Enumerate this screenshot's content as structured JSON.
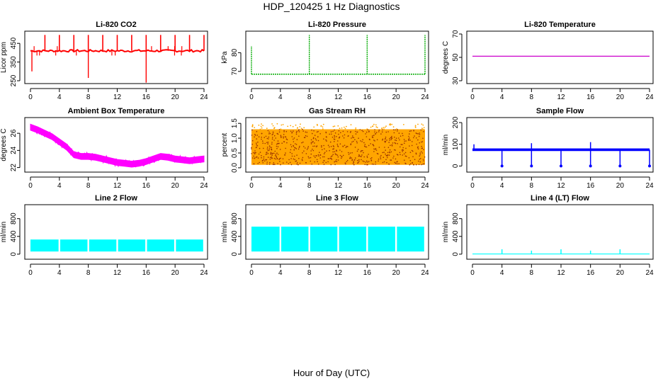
{
  "page": {
    "title": "HDP_120425  1 Hz Diagnostics",
    "xlabel": "Hour of Day (UTC)"
  },
  "chart_data": [
    {
      "type": "line",
      "title": "Li-820 CO2",
      "ylabel": "Licor ppm",
      "color": "#ff0000",
      "style": "co2",
      "xlim": [
        0,
        24
      ],
      "ylim": [
        250,
        500
      ],
      "xticks": [
        0,
        4,
        8,
        12,
        16,
        20,
        24
      ],
      "yticks": [
        250,
        350,
        450
      ],
      "baseline": 410,
      "spikes_up": [
        2,
        4,
        6,
        8,
        10,
        12,
        14,
        16,
        18,
        20,
        22,
        24
      ],
      "spikes_up_to": 495,
      "spikes_down": [
        [
          8,
          265
        ],
        [
          16,
          240
        ],
        [
          0.2,
          300
        ]
      ]
    },
    {
      "type": "line",
      "title": "Li-820 Pressure",
      "ylabel": "kPa",
      "color": "#00aa00",
      "style": "pressure",
      "xlim": [
        0,
        24
      ],
      "ylim": [
        65,
        90
      ],
      "xticks": [
        0,
        4,
        8,
        12,
        16,
        20,
        24
      ],
      "yticks": [
        70,
        80
      ],
      "baseline": 68.5,
      "spikes_up": [
        0,
        8,
        16,
        24
      ],
      "spikes_up_to": 89.5
    },
    {
      "type": "line",
      "title": "Li-820 Temperature",
      "ylabel": "degrees C",
      "color": "#cc00cc",
      "style": "flat",
      "xlim": [
        0,
        24
      ],
      "ylim": [
        30,
        70
      ],
      "xticks": [
        0,
        4,
        8,
        12,
        16,
        20,
        24
      ],
      "yticks": [
        30,
        50,
        70
      ],
      "baseline": 51
    },
    {
      "type": "line",
      "title": "Ambient Box Temperature",
      "ylabel": "degrees C",
      "color": "#ff00ff",
      "style": "band",
      "xlim": [
        0,
        24
      ],
      "ylim": [
        21.8,
        27.5
      ],
      "xticks": [
        0,
        4,
        8,
        12,
        16,
        20,
        24
      ],
      "yticks": [
        22,
        24,
        26
      ],
      "x": [
        0,
        1,
        2,
        3,
        4,
        5,
        6,
        7,
        8,
        9,
        10,
        11,
        12,
        13,
        14,
        15,
        16,
        17,
        18,
        19,
        20,
        21,
        22,
        23,
        24
      ],
      "y": [
        26.7,
        26.4,
        26.0,
        25.6,
        25.0,
        24.4,
        23.5,
        23.3,
        23.3,
        23.2,
        23.0,
        22.8,
        22.6,
        22.5,
        22.4,
        22.5,
        22.7,
        23.0,
        23.3,
        23.2,
        23.0,
        22.9,
        22.8,
        22.9,
        23.0
      ],
      "band_halfwidth": 0.35
    },
    {
      "type": "scatter",
      "title": "Gas Stream RH",
      "ylabel": "percent",
      "color": "#ffa500",
      "color2": "#993300",
      "style": "rh",
      "xlim": [
        0,
        24
      ],
      "ylim": [
        -0.05,
        1.6
      ],
      "xticks": [
        0,
        4,
        8,
        12,
        16,
        20,
        24
      ],
      "yticks": [
        0.0,
        0.5,
        1.0,
        1.5
      ],
      "band": [
        0.1,
        1.3
      ]
    },
    {
      "type": "line",
      "title": "Sample Flow",
      "ylabel": "ml/min",
      "color": "#0000ff",
      "style": "sampleflow",
      "xlim": [
        0,
        24
      ],
      "ylim": [
        -15,
        210
      ],
      "xticks": [
        0,
        4,
        8,
        12,
        16,
        20,
        24
      ],
      "yticks": [
        0,
        100,
        200
      ],
      "baseline": 75,
      "spikes_down": [
        4,
        8,
        12,
        16,
        20,
        24
      ],
      "spikes_up": [
        [
          0.2,
          100
        ],
        [
          8,
          105
        ],
        [
          16,
          110
        ]
      ]
    },
    {
      "type": "area",
      "title": "Line 2 Flow",
      "ylabel": "ml/min",
      "color": "#00ffff",
      "style": "fill",
      "xlim": [
        0,
        24
      ],
      "ylim": [
        -50,
        1050
      ],
      "xticks": [
        0,
        4,
        8,
        12,
        16,
        20,
        24
      ],
      "yticks": [
        0,
        400,
        800
      ],
      "band": [
        60,
        330
      ],
      "gaps": [
        4,
        8,
        12,
        16,
        20
      ]
    },
    {
      "type": "area",
      "title": "Line 3 Flow",
      "ylabel": "ml/min",
      "color": "#00ffff",
      "style": "fill",
      "xlim": [
        0,
        24
      ],
      "ylim": [
        -50,
        1050
      ],
      "xticks": [
        0,
        4,
        8,
        12,
        16,
        20,
        24
      ],
      "yticks": [
        0,
        400,
        800
      ],
      "band": [
        60,
        620
      ],
      "gaps": [
        4,
        8,
        12,
        16,
        20
      ]
    },
    {
      "type": "line",
      "title": "Line 4 (LT) Flow",
      "ylabel": "ml/min",
      "color": "#00ffff",
      "style": "lowflow",
      "xlim": [
        0,
        24
      ],
      "ylim": [
        -50,
        1050
      ],
      "xticks": [
        0,
        4,
        8,
        12,
        16,
        20,
        24
      ],
      "yticks": [
        0,
        400,
        800
      ],
      "baseline": 5,
      "spikes_up": [
        [
          4,
          110
        ],
        [
          8,
          80
        ],
        [
          12,
          110
        ],
        [
          16,
          80
        ],
        [
          20,
          110
        ]
      ]
    }
  ]
}
